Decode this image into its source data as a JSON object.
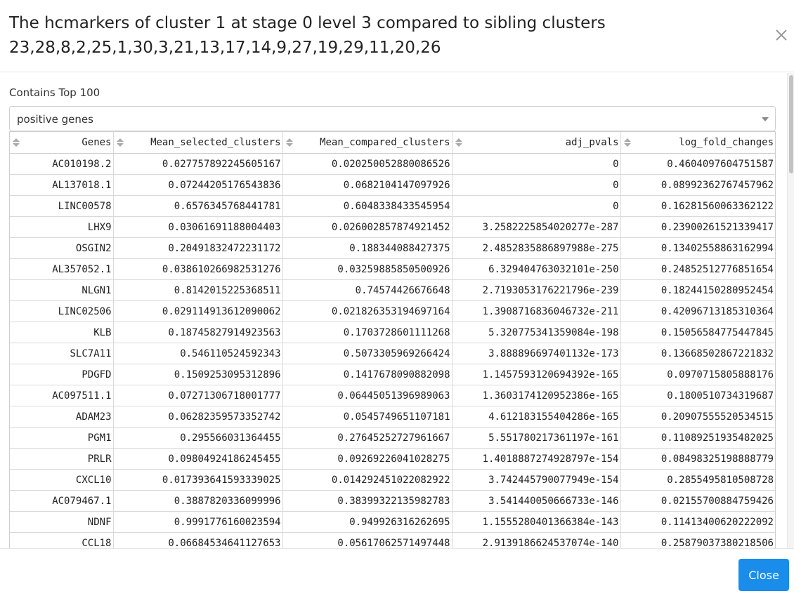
{
  "modal": {
    "title": "The hcmarkers of cluster 1 at stage 0 level 3 compared to sibling clusters 23,28,8,2,25,1,30,3,21,13,17,14,9,27,19,29,11,20,26",
    "close_label": "Close"
  },
  "filter": {
    "label": "Contains Top 100",
    "selected": "positive genes"
  },
  "table": {
    "columns": [
      "Genes",
      "Mean_selected_clusters",
      "Mean_compared_clusters",
      "adj_pvals",
      "log_fold_changes"
    ],
    "rows": [
      [
        "AC010198.2",
        "0.027757892245605167",
        "0.020250052880086526",
        "0",
        "0.4604097604751587"
      ],
      [
        "AL137018.1",
        "0.07244205176543836",
        "0.0682104147097926",
        "0",
        "0.08992362767457962"
      ],
      [
        "LINC00578",
        "0.6576345768441781",
        "0.6048338433545954",
        "0",
        "0.16281560063362122"
      ],
      [
        "LHX9",
        "0.03061691188004403",
        "0.026002857874921452",
        "3.2582225854020277e-287",
        "0.23900261521339417"
      ],
      [
        "OSGIN2",
        "0.20491832472231172",
        "0.188344088427375",
        "2.4852835886897988e-275",
        "0.13402558863162994"
      ],
      [
        "AL357052.1",
        "0.03861026698253127​6",
        "0.03259885850500926",
        "6.329404763032101e-250",
        "0.24852512776851654"
      ],
      [
        "NLGN1",
        "0.8142015225368511",
        "0.74574426676648",
        "2.7193053176221796e-239",
        "0.18244150280952454"
      ],
      [
        "LINC02506",
        "0.029114913612090062",
        "0.021826353194697164",
        "1.3908716836046732e-211",
        "0.42096713185310364"
      ],
      [
        "KLB",
        "0.18745827914923563",
        "0.1703728601111268",
        "5.320775341359084e-198",
        "0.15056584775447845"
      ],
      [
        "SLC7A11",
        "0.546110524592343",
        "0.5073305969266424",
        "3.888896697401132e-173",
        "0.13668502867221832"
      ],
      [
        "PDGFD",
        "0.1509253095312896",
        "0.1417678090882098",
        "1.1457593120694392e-165",
        "0.0970715805888176"
      ],
      [
        "AC097511.1",
        "0.07271306718001777",
        "0.06445051396989063",
        "1.3603174120952386e-165",
        "0.1800510734319687"
      ],
      [
        "ADAM23",
        "0.06282359573352742",
        "0.0545749651107181",
        "4.612183155404286e-165",
        "0.20907555520534515"
      ],
      [
        "PGM1",
        "0.295566031364455",
        "0.27645252727961667",
        "5.551780217361197e-161",
        "0.11089251935482025"
      ],
      [
        "PRLR",
        "0.09804924186245455",
        "0.09269226041028275",
        "1.4018887274928797e-154",
        "0.08498325198888779"
      ],
      [
        "CXCL10",
        "0.017393641593339025",
        "0.014292451022082922",
        "3.742445790077949e-154",
        "0.2855495810508728"
      ],
      [
        "AC079467.1",
        "0.3887820336099996",
        "0.38399322135982783",
        "3.541440050666733e-146",
        "0.02155700884759426"
      ],
      [
        "NDNF",
        "0.9991776160023594",
        "0.949926316262695",
        "1.1555280401366384e-143",
        "0.11413400620222092"
      ],
      [
        "CCL18",
        "0.06684534641127653",
        "0.05617062571497448",
        "2.9139186624537074e-140",
        "0.25879037380218506"
      ]
    ]
  },
  "icons": {
    "close": "close-icon",
    "select_caret": "chevron-down-icon",
    "sort": "sort-icon"
  },
  "colors": {
    "primary_button": "#1a8cea",
    "border": "#cfcfcf"
  }
}
